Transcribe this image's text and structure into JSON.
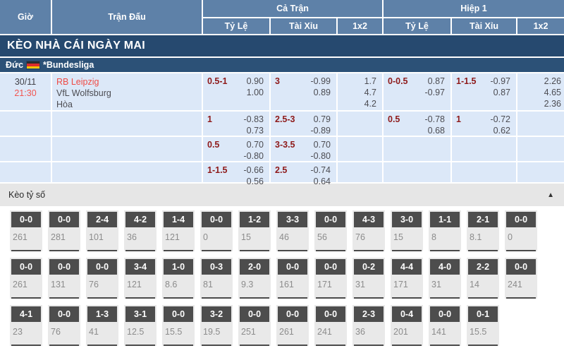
{
  "header": {
    "col_time": "Giờ",
    "col_match": "Trận Đấu",
    "group_full_time": "Cả Trận",
    "group_first_half": "Hiệp 1",
    "sub_handicap": "Tỷ Lệ",
    "sub_over_under": "Tài Xỉu",
    "sub_1x2": "1x2"
  },
  "banner": {
    "title": "KÈO NHÀ CÁI NGÀY MAI"
  },
  "league": {
    "country": "Đức",
    "name": "*Bundesliga",
    "flag": "germany-flag"
  },
  "match": {
    "date": "30/11",
    "time": "21:30",
    "home": "RB Leipzig",
    "away": "VfL Wolfsburg",
    "draw_label": "Hòa",
    "rows": [
      {
        "ft_hdp": "0.5-1",
        "ft_hdp_odds": [
          "0.90",
          "1.00"
        ],
        "ft_ou": "3",
        "ft_ou_odds": [
          "-0.99",
          "0.89"
        ],
        "ft_1x2": [
          "1.7",
          "4.7",
          "4.2"
        ],
        "h1_hdp": "0-0.5",
        "h1_hdp_odds": [
          "0.87",
          "-0.97"
        ],
        "h1_ou": "1-1.5",
        "h1_ou_odds": [
          "-0.97",
          "0.87"
        ],
        "h1_1x2": [
          "2.26",
          "4.65",
          "2.36"
        ]
      },
      {
        "ft_hdp": "1",
        "ft_hdp_odds": [
          "-0.83",
          "0.73"
        ],
        "ft_ou": "2.5-3",
        "ft_ou_odds": [
          "0.79",
          "-0.89"
        ],
        "ft_1x2": [],
        "h1_hdp": "0.5",
        "h1_hdp_odds": [
          "-0.78",
          "0.68"
        ],
        "h1_ou": "1",
        "h1_ou_odds": [
          "-0.72",
          "0.62"
        ],
        "h1_1x2": []
      },
      {
        "ft_hdp": "0.5",
        "ft_hdp_odds": [
          "0.70",
          "-0.80"
        ],
        "ft_ou": "3-3.5",
        "ft_ou_odds": [
          "0.70",
          "-0.80"
        ],
        "ft_1x2": [],
        "h1_hdp": "",
        "h1_hdp_odds": [],
        "h1_ou": "",
        "h1_ou_odds": [],
        "h1_1x2": []
      },
      {
        "ft_hdp": "1-1.5",
        "ft_hdp_odds": [
          "-0.66",
          "0.56"
        ],
        "ft_ou": "2.5",
        "ft_ou_odds": [
          "-0.74",
          "0.64"
        ],
        "ft_1x2": [],
        "h1_hdp": "",
        "h1_hdp_odds": [],
        "h1_ou": "",
        "h1_ou_odds": [],
        "h1_1x2": []
      }
    ]
  },
  "score_section": {
    "title": "Kèo tỷ số",
    "collapse_icon": "▲",
    "rows": [
      [
        {
          "score": "0-0",
          "odds": "261"
        },
        {
          "score": "0-0",
          "odds": "281"
        },
        {
          "score": "2-4",
          "odds": "101"
        },
        {
          "score": "4-2",
          "odds": "36"
        },
        {
          "score": "1-4",
          "odds": "121"
        },
        {
          "score": "0-0",
          "odds": "0"
        },
        {
          "score": "1-2",
          "odds": "15"
        },
        {
          "score": "3-3",
          "odds": "46"
        },
        {
          "score": "0-0",
          "odds": "56"
        },
        {
          "score": "4-3",
          "odds": "76"
        },
        {
          "score": "3-0",
          "odds": "15"
        },
        {
          "score": "1-1",
          "odds": "8"
        },
        {
          "score": "2-1",
          "odds": "8.1"
        },
        {
          "score": "0-0",
          "odds": "0"
        }
      ],
      [
        {
          "score": "0-0",
          "odds": "261"
        },
        {
          "score": "0-0",
          "odds": "131"
        },
        {
          "score": "0-0",
          "odds": "76"
        },
        {
          "score": "3-4",
          "odds": "121"
        },
        {
          "score": "1-0",
          "odds": "8.6"
        },
        {
          "score": "0-3",
          "odds": "81"
        },
        {
          "score": "2-0",
          "odds": "9.3"
        },
        {
          "score": "0-0",
          "odds": "161"
        },
        {
          "score": "0-0",
          "odds": "171"
        },
        {
          "score": "0-2",
          "odds": "31"
        },
        {
          "score": "4-4",
          "odds": "171"
        },
        {
          "score": "4-0",
          "odds": "31"
        },
        {
          "score": "2-2",
          "odds": "14"
        },
        {
          "score": "0-0",
          "odds": "241"
        }
      ],
      [
        {
          "score": "4-1",
          "odds": "23"
        },
        {
          "score": "0-0",
          "odds": "76"
        },
        {
          "score": "1-3",
          "odds": "41"
        },
        {
          "score": "3-1",
          "odds": "12.5"
        },
        {
          "score": "0-0",
          "odds": "15.5"
        },
        {
          "score": "3-2",
          "odds": "19.5"
        },
        {
          "score": "0-0",
          "odds": "251"
        },
        {
          "score": "0-0",
          "odds": "261"
        },
        {
          "score": "0-0",
          "odds": "241"
        },
        {
          "score": "2-3",
          "odds": "36"
        },
        {
          "score": "0-4",
          "odds": "201"
        },
        {
          "score": "0-0",
          "odds": "141"
        },
        {
          "score": "0-1",
          "odds": "15.5"
        }
      ]
    ]
  },
  "colors": {
    "header_blue": "#5e81a8",
    "banner_navy": "#26496f",
    "league_navy": "#2c5177",
    "row_light_blue": "#dce8f8",
    "handicap_maroon": "#8e1a1a",
    "accent_red": "#ef4b45",
    "badge_gray": "#4d4d4d",
    "tile_gray": "#e9e9e9"
  }
}
